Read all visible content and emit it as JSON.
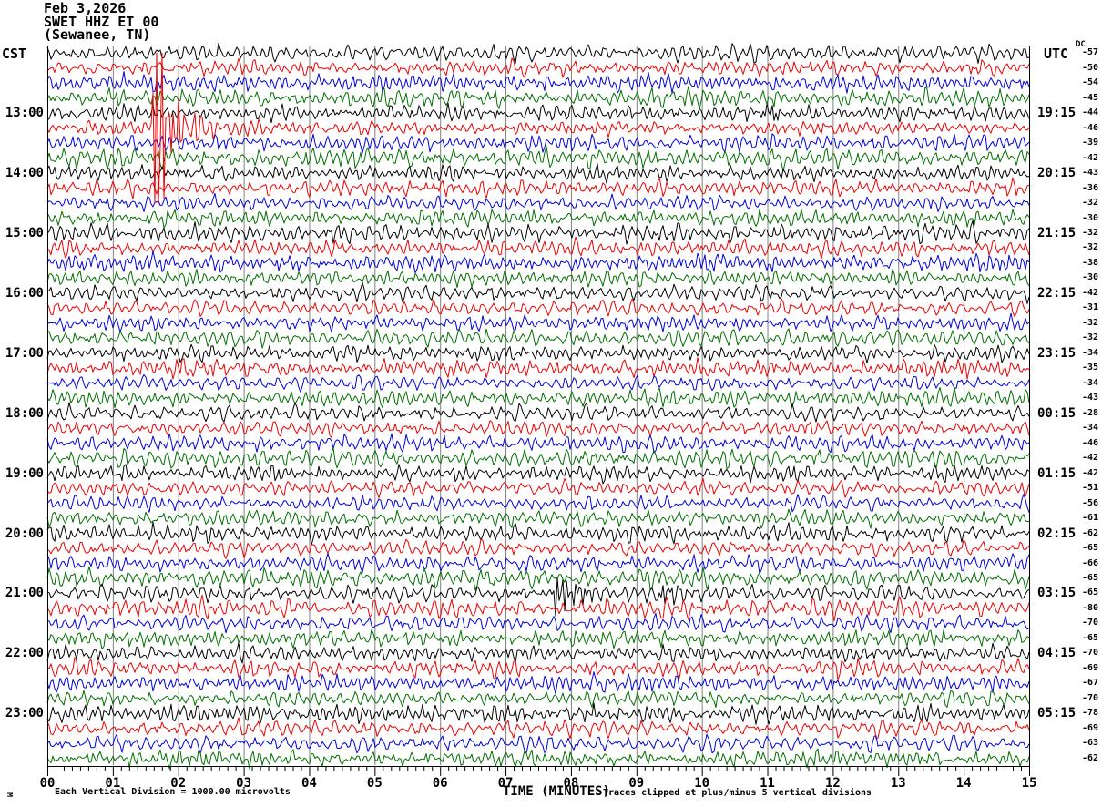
{
  "header": {
    "date": "Feb 3,2026",
    "station": "SWET HHZ ET 00",
    "location": "(Sewanee, TN)"
  },
  "left_axis_title": "CST",
  "right_axis_title": "UTC",
  "dc_column_title": "DC",
  "bottom": {
    "axis_title": "TIME (MINUTES)",
    "division_caption": "Each Vertical Division = 1000.00 microvolts",
    "clip_caption": "Traces clipped at plus/minus 5 vertical divisions",
    "corner_glyph": "M"
  },
  "chart_data": {
    "type": "line",
    "subtype": "seismogram-helicorder",
    "title": "SWET HHZ ET 00 (Sewanee, TN) Feb 3,2026",
    "x_axis": {
      "label": "TIME (MINUTES)",
      "min": 0,
      "max": 15,
      "major_tick_every": 1,
      "minor_divisions_per_major": 8,
      "tick_labels": [
        "00",
        "01",
        "02",
        "03",
        "04",
        "05",
        "06",
        "07",
        "08",
        "09",
        "10",
        "11",
        "12",
        "13",
        "14",
        "15"
      ]
    },
    "grid": true,
    "clip_divisions": 5,
    "microvolts_per_division": 1000.0,
    "minutes_per_row": 15,
    "row_color_cycle": [
      "black",
      "red",
      "blue",
      "green"
    ],
    "colors": {
      "black": "#000000",
      "red": "#ee0000",
      "blue": "#0000dd",
      "green": "#007000",
      "grid": "#808080",
      "border": "#000000"
    },
    "seed": 42,
    "rows": [
      {
        "cst": null,
        "utc": null,
        "dc": -57,
        "amp": 5.4
      },
      {
        "cst": null,
        "utc": null,
        "dc": -50,
        "amp": 5.0
      },
      {
        "cst": null,
        "utc": null,
        "dc": -54,
        "amp": 5.6
      },
      {
        "cst": null,
        "utc": null,
        "dc": -45,
        "amp": 5.8
      },
      {
        "cst": "13:00",
        "utc": "19:15",
        "dc": -44,
        "amp": 5.2
      },
      {
        "cst": null,
        "utc": null,
        "dc": -46,
        "amp": 4.6
      },
      {
        "cst": null,
        "utc": null,
        "dc": -39,
        "amp": 5.4
      },
      {
        "cst": null,
        "utc": null,
        "dc": -42,
        "amp": 6.0
      },
      {
        "cst": "14:00",
        "utc": "20:15",
        "dc": -43,
        "amp": 5.0
      },
      {
        "cst": null,
        "utc": null,
        "dc": -36,
        "amp": 5.4
      },
      {
        "cst": null,
        "utc": null,
        "dc": -32,
        "amp": 4.8
      },
      {
        "cst": null,
        "utc": null,
        "dc": -30,
        "amp": 5.2
      },
      {
        "cst": "15:00",
        "utc": "21:15",
        "dc": -32,
        "amp": 6.0
      },
      {
        "cst": null,
        "utc": null,
        "dc": -32,
        "amp": 5.4
      },
      {
        "cst": null,
        "utc": null,
        "dc": -38,
        "amp": 5.6
      },
      {
        "cst": null,
        "utc": null,
        "dc": -30,
        "amp": 5.0
      },
      {
        "cst": "16:00",
        "utc": "22:15",
        "dc": -42,
        "amp": 5.2
      },
      {
        "cst": null,
        "utc": null,
        "dc": -31,
        "amp": 4.8
      },
      {
        "cst": null,
        "utc": null,
        "dc": -32,
        "amp": 5.0
      },
      {
        "cst": null,
        "utc": null,
        "dc": -32,
        "amp": 5.6
      },
      {
        "cst": "17:00",
        "utc": "23:15",
        "dc": -34,
        "amp": 5.0
      },
      {
        "cst": null,
        "utc": null,
        "dc": -35,
        "amp": 5.6
      },
      {
        "cst": null,
        "utc": null,
        "dc": -34,
        "amp": 4.8
      },
      {
        "cst": null,
        "utc": null,
        "dc": -43,
        "amp": 5.4
      },
      {
        "cst": "18:00",
        "utc": "00:15",
        "dc": -28,
        "amp": 5.2
      },
      {
        "cst": null,
        "utc": null,
        "dc": -34,
        "amp": 4.8
      },
      {
        "cst": null,
        "utc": null,
        "dc": -46,
        "amp": 5.4
      },
      {
        "cst": null,
        "utc": null,
        "dc": -42,
        "amp": 5.8
      },
      {
        "cst": "19:00",
        "utc": "01:15",
        "dc": -42,
        "amp": 5.4
      },
      {
        "cst": null,
        "utc": null,
        "dc": -51,
        "amp": 5.0
      },
      {
        "cst": null,
        "utc": null,
        "dc": -56,
        "amp": 4.8
      },
      {
        "cst": null,
        "utc": null,
        "dc": -61,
        "amp": 5.2
      },
      {
        "cst": "20:00",
        "utc": "02:15",
        "dc": -62,
        "amp": 5.6
      },
      {
        "cst": null,
        "utc": null,
        "dc": -65,
        "amp": 5.0
      },
      {
        "cst": null,
        "utc": null,
        "dc": -66,
        "amp": 5.4
      },
      {
        "cst": null,
        "utc": null,
        "dc": -65,
        "amp": 6.0
      },
      {
        "cst": "21:00",
        "utc": "03:15",
        "dc": -65,
        "amp": 5.4
      },
      {
        "cst": null,
        "utc": null,
        "dc": -80,
        "amp": 6.2
      },
      {
        "cst": null,
        "utc": null,
        "dc": -70,
        "amp": 5.2
      },
      {
        "cst": null,
        "utc": null,
        "dc": -65,
        "amp": 5.4
      },
      {
        "cst": "22:00",
        "utc": "04:15",
        "dc": -70,
        "amp": 5.2
      },
      {
        "cst": null,
        "utc": null,
        "dc": -69,
        "amp": 5.6
      },
      {
        "cst": null,
        "utc": null,
        "dc": -67,
        "amp": 5.4
      },
      {
        "cst": null,
        "utc": null,
        "dc": -70,
        "amp": 5.0
      },
      {
        "cst": "23:00",
        "utc": "05:15",
        "dc": -78,
        "amp": 5.8
      },
      {
        "cst": null,
        "utc": null,
        "dc": -69,
        "amp": 5.4
      },
      {
        "cst": null,
        "utc": null,
        "dc": -63,
        "amp": 5.2
      },
      {
        "cst": null,
        "utc": null,
        "dc": -62,
        "amp": 5.5
      }
    ],
    "events": [
      {
        "row": 5,
        "minute": 1.61,
        "amp": 450,
        "decay": 6,
        "period": 3.5,
        "label": "clipped red spike"
      },
      {
        "row": 5,
        "minute": 1.66,
        "amp": 70,
        "decay": 18,
        "period": 6,
        "label": "strong onset coda"
      },
      {
        "row": 5,
        "minute": 1.72,
        "amp": 16,
        "decay": 95,
        "period": 9,
        "label": "decaying coda"
      },
      {
        "row": 4,
        "minute": 10.93,
        "amp": 16,
        "decay": 12,
        "period": 3.5,
        "label": "small black burst"
      },
      {
        "row": 36,
        "minute": 7.72,
        "amp": 24,
        "decay": 26,
        "period": 5,
        "label": "black burst"
      },
      {
        "row": 36,
        "minute": 9.33,
        "amp": 12,
        "decay": 20,
        "period": 5,
        "label": "second burst"
      }
    ]
  }
}
